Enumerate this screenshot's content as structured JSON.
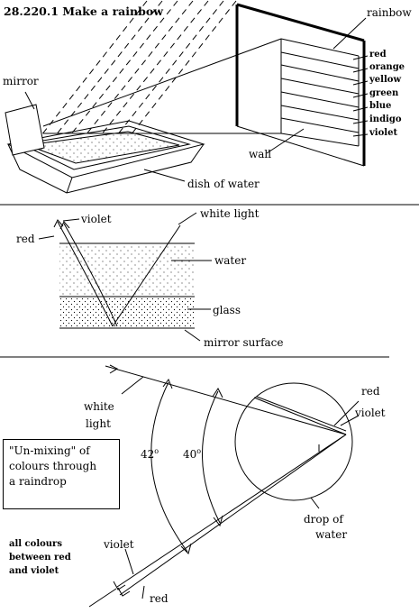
{
  "title": "28.220.1 Make a rainbow",
  "panel1": {
    "rainbow": "rainbow",
    "mirror": "mirror",
    "wall": "wall",
    "dish": "dish of water",
    "colours": [
      "red",
      "orange",
      "yellow",
      "green",
      "blue",
      "indigo",
      "violet"
    ]
  },
  "panel2": {
    "violet": "violet",
    "red": "red",
    "white_light": "white light",
    "water": "water",
    "glass": "glass",
    "mirror_surface": "mirror surface"
  },
  "panel3": {
    "white_light_line1": "white",
    "white_light_line2": "light",
    "red": "red",
    "violet": "violet",
    "angle_outer_value": "42",
    "angle_inner_value": "40",
    "degree_mark": "o",
    "note_lines": [
      "\"Un-mixing\" of",
      "colours through",
      "a raindrop"
    ],
    "drop_line1": "drop of",
    "drop_line2": "water",
    "all_colours_lines": [
      "all colours",
      "between red",
      "and violet"
    ],
    "bottom_violet": "violet",
    "bottom_red": "red"
  }
}
